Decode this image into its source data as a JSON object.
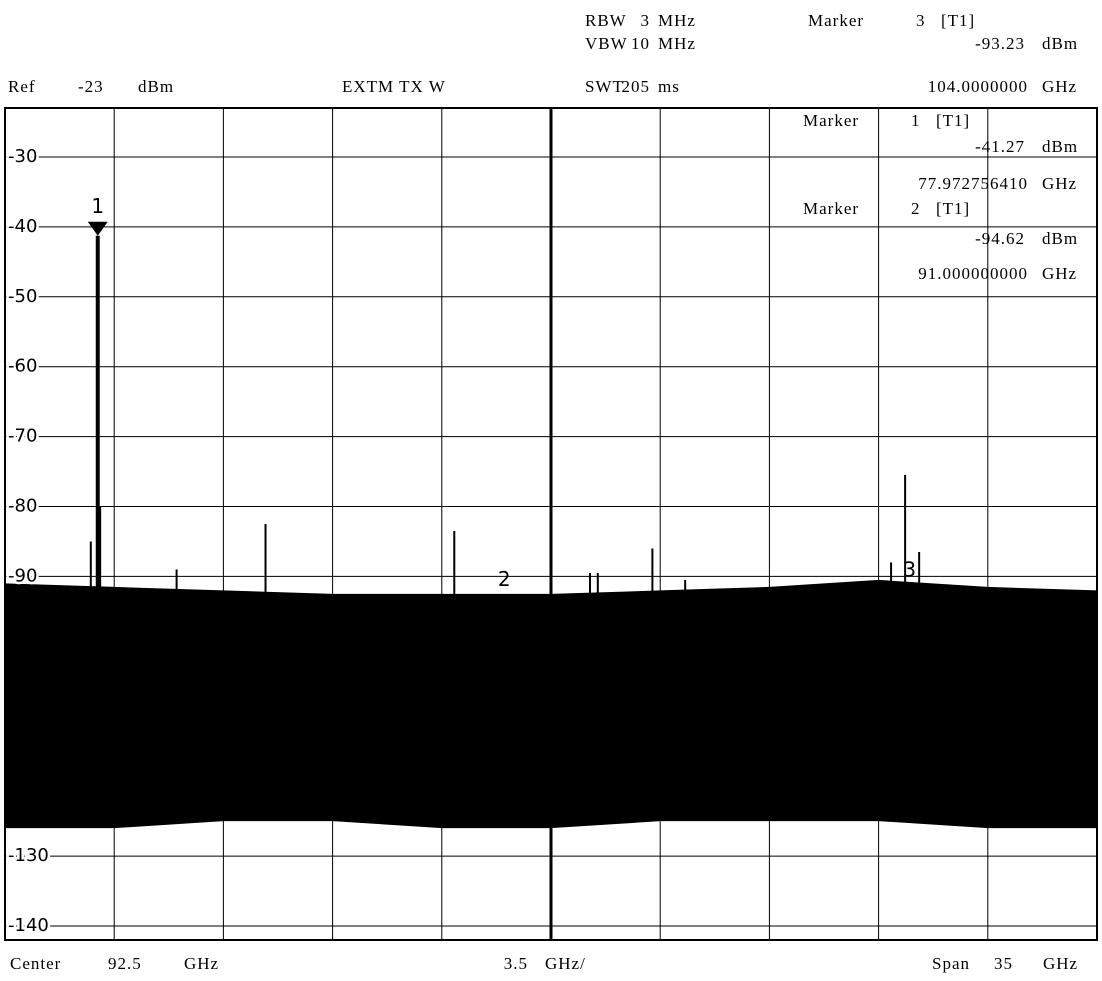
{
  "chart_data": {
    "type": "spectrum",
    "ref": {
      "label": "Ref",
      "value": -23,
      "unit": "dBm"
    },
    "mode": "EXTM TX W",
    "rbw": {
      "label": "RBW",
      "value": 3,
      "unit": "MHz"
    },
    "vbw": {
      "label": "VBW",
      "value": 10,
      "unit": "MHz"
    },
    "swt": {
      "label": "SWT",
      "value": 205,
      "unit": "ms"
    },
    "center": {
      "label": "Center",
      "value": 92.5,
      "unit": "GHz"
    },
    "per_div": {
      "value": 3.5,
      "unit": "GHz/"
    },
    "span": {
      "label": "Span",
      "value": 35,
      "unit": "GHz"
    },
    "marker_word": "Marker",
    "markers": [
      {
        "name": "1",
        "trace": "[T1]",
        "x": 77.97275641,
        "x_label": "77.972756410",
        "x_unit": "GHz",
        "y": -41.27,
        "y_unit": "dBm"
      },
      {
        "name": "2",
        "trace": "[T1]",
        "x": 91,
        "x_label": "91.000000000",
        "x_unit": "GHz",
        "y": -94.62,
        "y_unit": "dBm"
      },
      {
        "name": "3",
        "trace": "[T1]",
        "x": 104,
        "x_label": "104.0000000",
        "x_unit": "GHz",
        "y": -93.23,
        "y_unit": "dBm"
      }
    ],
    "xlim": [
      75,
      110
    ],
    "ylim": [
      -142,
      -23
    ],
    "yticks": [
      -30,
      -40,
      -50,
      -60,
      -70,
      -80,
      -90,
      -130,
      -140
    ],
    "grid": true,
    "color": "#000000",
    "envelope": {
      "x": [
        75,
        78.5,
        82,
        85.5,
        89,
        92.5,
        96,
        99.5,
        103,
        106.5,
        110
      ],
      "upper": [
        -91,
        -91.5,
        -92,
        -92.5,
        -92.5,
        -92.5,
        -92,
        -91.5,
        -90.5,
        -91.5,
        -92
      ],
      "lower": [
        -126,
        -126,
        -125,
        -125,
        -126,
        -126,
        -125,
        -125,
        -125,
        -126,
        -126
      ]
    },
    "spurs": {
      "x": [
        77.75,
        78.05,
        80.5,
        83.35,
        89.4,
        93.75,
        94,
        95.75,
        96.8,
        103.4,
        103.85,
        104.3
      ],
      "values": [
        -85,
        -80,
        -89,
        -82.5,
        -83.5,
        -89.5,
        -89.5,
        -86,
        -90.5,
        -88,
        -75.5,
        -86.5
      ]
    }
  }
}
